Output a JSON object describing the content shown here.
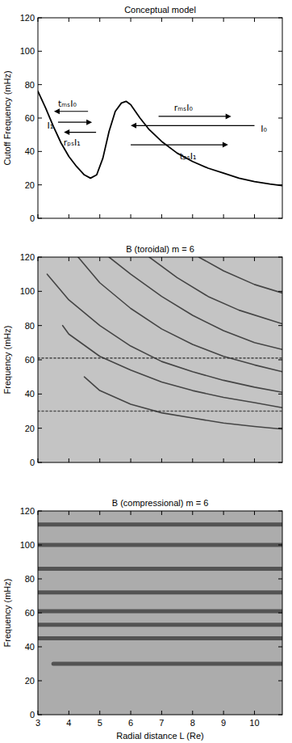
{
  "chart_data": [
    {
      "type": "line",
      "title": "Conceptual model",
      "y_label": "Cutoff Frequency (mHz)",
      "xlim": [
        3,
        10.9
      ],
      "xticks": [
        3,
        4,
        5,
        6,
        7,
        8,
        9,
        10
      ],
      "ylim": [
        0,
        120
      ],
      "yticks": [
        0,
        20,
        40,
        60,
        80,
        100,
        120
      ],
      "tick_labels": "y",
      "grid": false,
      "color": "#000000",
      "series": [
        {
          "x": [
            3,
            3.25,
            3.5,
            3.75,
            4,
            4.25,
            4.5,
            4.7,
            4.9,
            5.1,
            5.3,
            5.5,
            5.7,
            5.85,
            6,
            6.3,
            6.6,
            7,
            7.5,
            8,
            8.5,
            9,
            9.5,
            10,
            10.5,
            10.9
          ],
          "values": [
            76,
            66,
            55,
            45,
            37,
            31,
            26,
            24,
            26,
            36,
            52,
            64,
            69,
            70,
            68,
            60,
            53,
            46,
            39,
            34,
            30,
            27,
            24,
            22,
            20.5,
            19.5
          ],
          "line_style": "solid"
        }
      ],
      "annotations": [
        {
          "text": "tₘₛI₀",
          "x": 3.95,
          "y": 68.5,
          "arrow_from": 4.62,
          "arrow_to": 3.52,
          "arrow_y": 64
        },
        {
          "text": "I₁",
          "x": 3.4,
          "y": 55.5,
          "arrow_from": 3.65,
          "arrow_to": 4.75,
          "arrow_y": 57.5
        },
        {
          "text": "rₚₛI₁",
          "x": 4.1,
          "y": 45.5,
          "arrow_from": 4.88,
          "arrow_to": 3.84,
          "arrow_y": 51.5
        },
        {
          "text": "rₘₛI₀",
          "x": 7.7,
          "y": 66.5,
          "arrow_from": 6.9,
          "arrow_to": 9.25,
          "arrow_y": 61
        },
        {
          "text": "I₀",
          "x": 10.3,
          "y": 53.5,
          "arrow_from": 10.0,
          "arrow_to": 6.0,
          "arrow_y": 55.5
        },
        {
          "text": "tₚₛI₁",
          "x": 7.85,
          "y": 37.5,
          "arrow_from": 6.0,
          "arrow_to": 9.15,
          "arrow_y": 44
        }
      ]
    },
    {
      "type": "line",
      "title": "B (toroidal) m = 6",
      "y_label": "Frequency (mHz)",
      "xlim": [
        3,
        10.9
      ],
      "xticks": [
        3,
        4,
        5,
        6,
        7,
        8,
        9,
        10
      ],
      "ylim": [
        0,
        120
      ],
      "yticks": [
        0,
        20,
        40,
        60,
        80,
        100,
        120
      ],
      "tick_labels": "y",
      "grid": false,
      "color": "#262626",
      "series": [
        {
          "x": [
            4.5,
            5,
            6,
            7,
            8,
            9,
            10,
            10.9
          ],
          "values": [
            50,
            42,
            34,
            29,
            26,
            23,
            21,
            19.5
          ],
          "line_style": "solid"
        },
        {
          "x": [
            3.8,
            4,
            5,
            6,
            7,
            8,
            9,
            10,
            10.9
          ],
          "values": [
            80,
            75,
            62,
            54,
            47,
            42,
            38,
            35,
            32
          ],
          "line_style": "solid"
        },
        {
          "x": [
            3.3,
            4,
            5,
            6,
            7,
            8,
            9,
            10,
            10.9
          ],
          "values": [
            110,
            95,
            80,
            68,
            59,
            53,
            48,
            44,
            41
          ],
          "line_style": "solid"
        },
        {
          "x": [
            4.3,
            5,
            6,
            7,
            8,
            9,
            10,
            10.9
          ],
          "values": [
            120,
            105,
            90,
            78,
            69,
            62,
            57,
            53
          ],
          "line_style": "solid"
        },
        {
          "x": [
            5.3,
            6,
            7,
            8,
            9,
            10,
            10.9
          ],
          "values": [
            120,
            110,
            97,
            86,
            77,
            70,
            66
          ],
          "line_style": "solid"
        },
        {
          "x": [
            6.6,
            7.5,
            8.5,
            9.5,
            10.9
          ],
          "values": [
            120,
            108,
            97,
            89,
            81
          ],
          "line_style": "solid"
        },
        {
          "x": [
            8.2,
            9,
            10,
            10.9
          ],
          "values": [
            120,
            112,
            104,
            99
          ],
          "line_style": "solid"
        },
        {
          "x": [
            3,
            10.9
          ],
          "values": [
            30,
            30
          ],
          "line_style": "dotted"
        },
        {
          "x": [
            3,
            10.9
          ],
          "values": [
            61,
            61
          ],
          "line_style": "dotted"
        }
      ]
    },
    {
      "type": "line",
      "title": "B (compressional) m = 6",
      "y_label": "Frequency (mHz)",
      "x_label": "Radial distance L (Re)",
      "xlim": [
        3,
        10.9
      ],
      "xticks": [
        3,
        4,
        5,
        6,
        7,
        8,
        9,
        10
      ],
      "ylim": [
        0,
        120
      ],
      "yticks": [
        0,
        20,
        40,
        60,
        80,
        100,
        120
      ],
      "tick_labels": true,
      "grid": false,
      "color": "#2e2e2e",
      "series": [
        {
          "x": [
            3.5,
            10.9
          ],
          "values": [
            30,
            30
          ],
          "line_style": "thick"
        },
        {
          "x": [
            3,
            10.9
          ],
          "values": [
            45,
            45
          ],
          "line_style": "thick"
        },
        {
          "x": [
            3,
            10.9
          ],
          "values": [
            53,
            53
          ],
          "line_style": "thick"
        },
        {
          "x": [
            3,
            10.9
          ],
          "values": [
            61,
            61
          ],
          "line_style": "thick"
        },
        {
          "x": [
            3,
            10.9
          ],
          "values": [
            72,
            72
          ],
          "line_style": "thick"
        },
        {
          "x": [
            3,
            10.9
          ],
          "values": [
            86,
            86
          ],
          "line_style": "thick"
        },
        {
          "x": [
            3,
            10.9
          ],
          "values": [
            100,
            100
          ],
          "line_style": "thick"
        },
        {
          "x": [
            3,
            10.9
          ],
          "values": [
            112,
            112
          ],
          "line_style": "thick"
        }
      ]
    }
  ]
}
